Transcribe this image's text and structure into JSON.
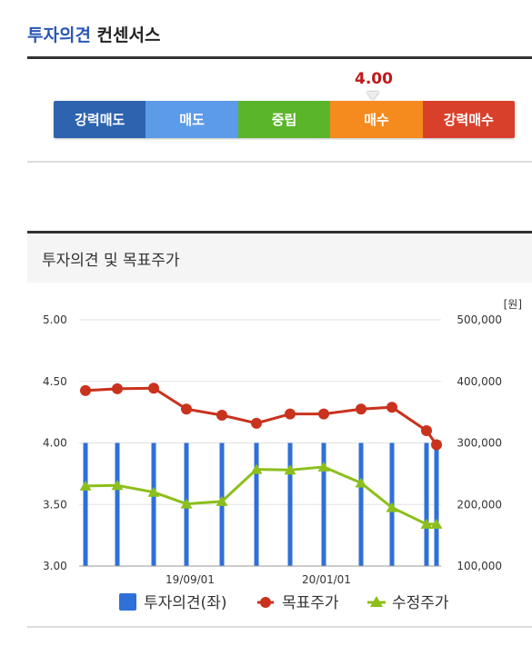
{
  "consensus": {
    "title_highlight": "투자의견",
    "title_rest": " 컨센서스",
    "score": "4.00",
    "score_value": 4.0,
    "scale": [
      {
        "label": "강력매도",
        "color": "#2e63b0"
      },
      {
        "label": "매도",
        "color": "#5b9be8"
      },
      {
        "label": "중립",
        "color": "#5bb52a"
      },
      {
        "label": "매수",
        "color": "#f58a1f"
      },
      {
        "label": "강력매수",
        "color": "#d9402b"
      }
    ]
  },
  "panel": {
    "title": "투자의견 및 목표주가"
  },
  "chart_data": {
    "type": "bar",
    "unit_right": "[원]",
    "x_tick_labels": [
      "19/09/01",
      "20/01/01"
    ],
    "left_axis": {
      "ticks": [
        "5.00",
        "4.50",
        "4.00",
        "3.50",
        "3.00"
      ],
      "ylim": [
        3.0,
        5.0
      ]
    },
    "right_axis": {
      "ticks": [
        "500,000",
        "400,000",
        "300,000",
        "200,000",
        "100,000"
      ],
      "ylim": [
        100000,
        500000
      ]
    },
    "grid": true,
    "legend_position": "bottom",
    "series": [
      {
        "name": "투자의견(좌)",
        "type": "bar",
        "axis": "left",
        "color": "#2f6fd8",
        "values": [
          4.0,
          4.0,
          4.0,
          4.0,
          4.0,
          4.0,
          4.0,
          4.0,
          4.0,
          4.0,
          4.0,
          4.0
        ]
      },
      {
        "name": "목표주가",
        "type": "line",
        "axis": "right",
        "marker": "circle",
        "color": "#c9321d",
        "values": [
          385000,
          388000,
          389000,
          355000,
          345000,
          332000,
          347000,
          347000,
          355000,
          358000,
          320000,
          297000
        ]
      },
      {
        "name": "수정주가",
        "type": "line",
        "axis": "right",
        "marker": "triangle",
        "color": "#8cbf1b",
        "values": [
          230000,
          231000,
          220000,
          201000,
          205000,
          257000,
          256000,
          261000,
          235000,
          195000,
          168000,
          168000
        ]
      }
    ]
  }
}
